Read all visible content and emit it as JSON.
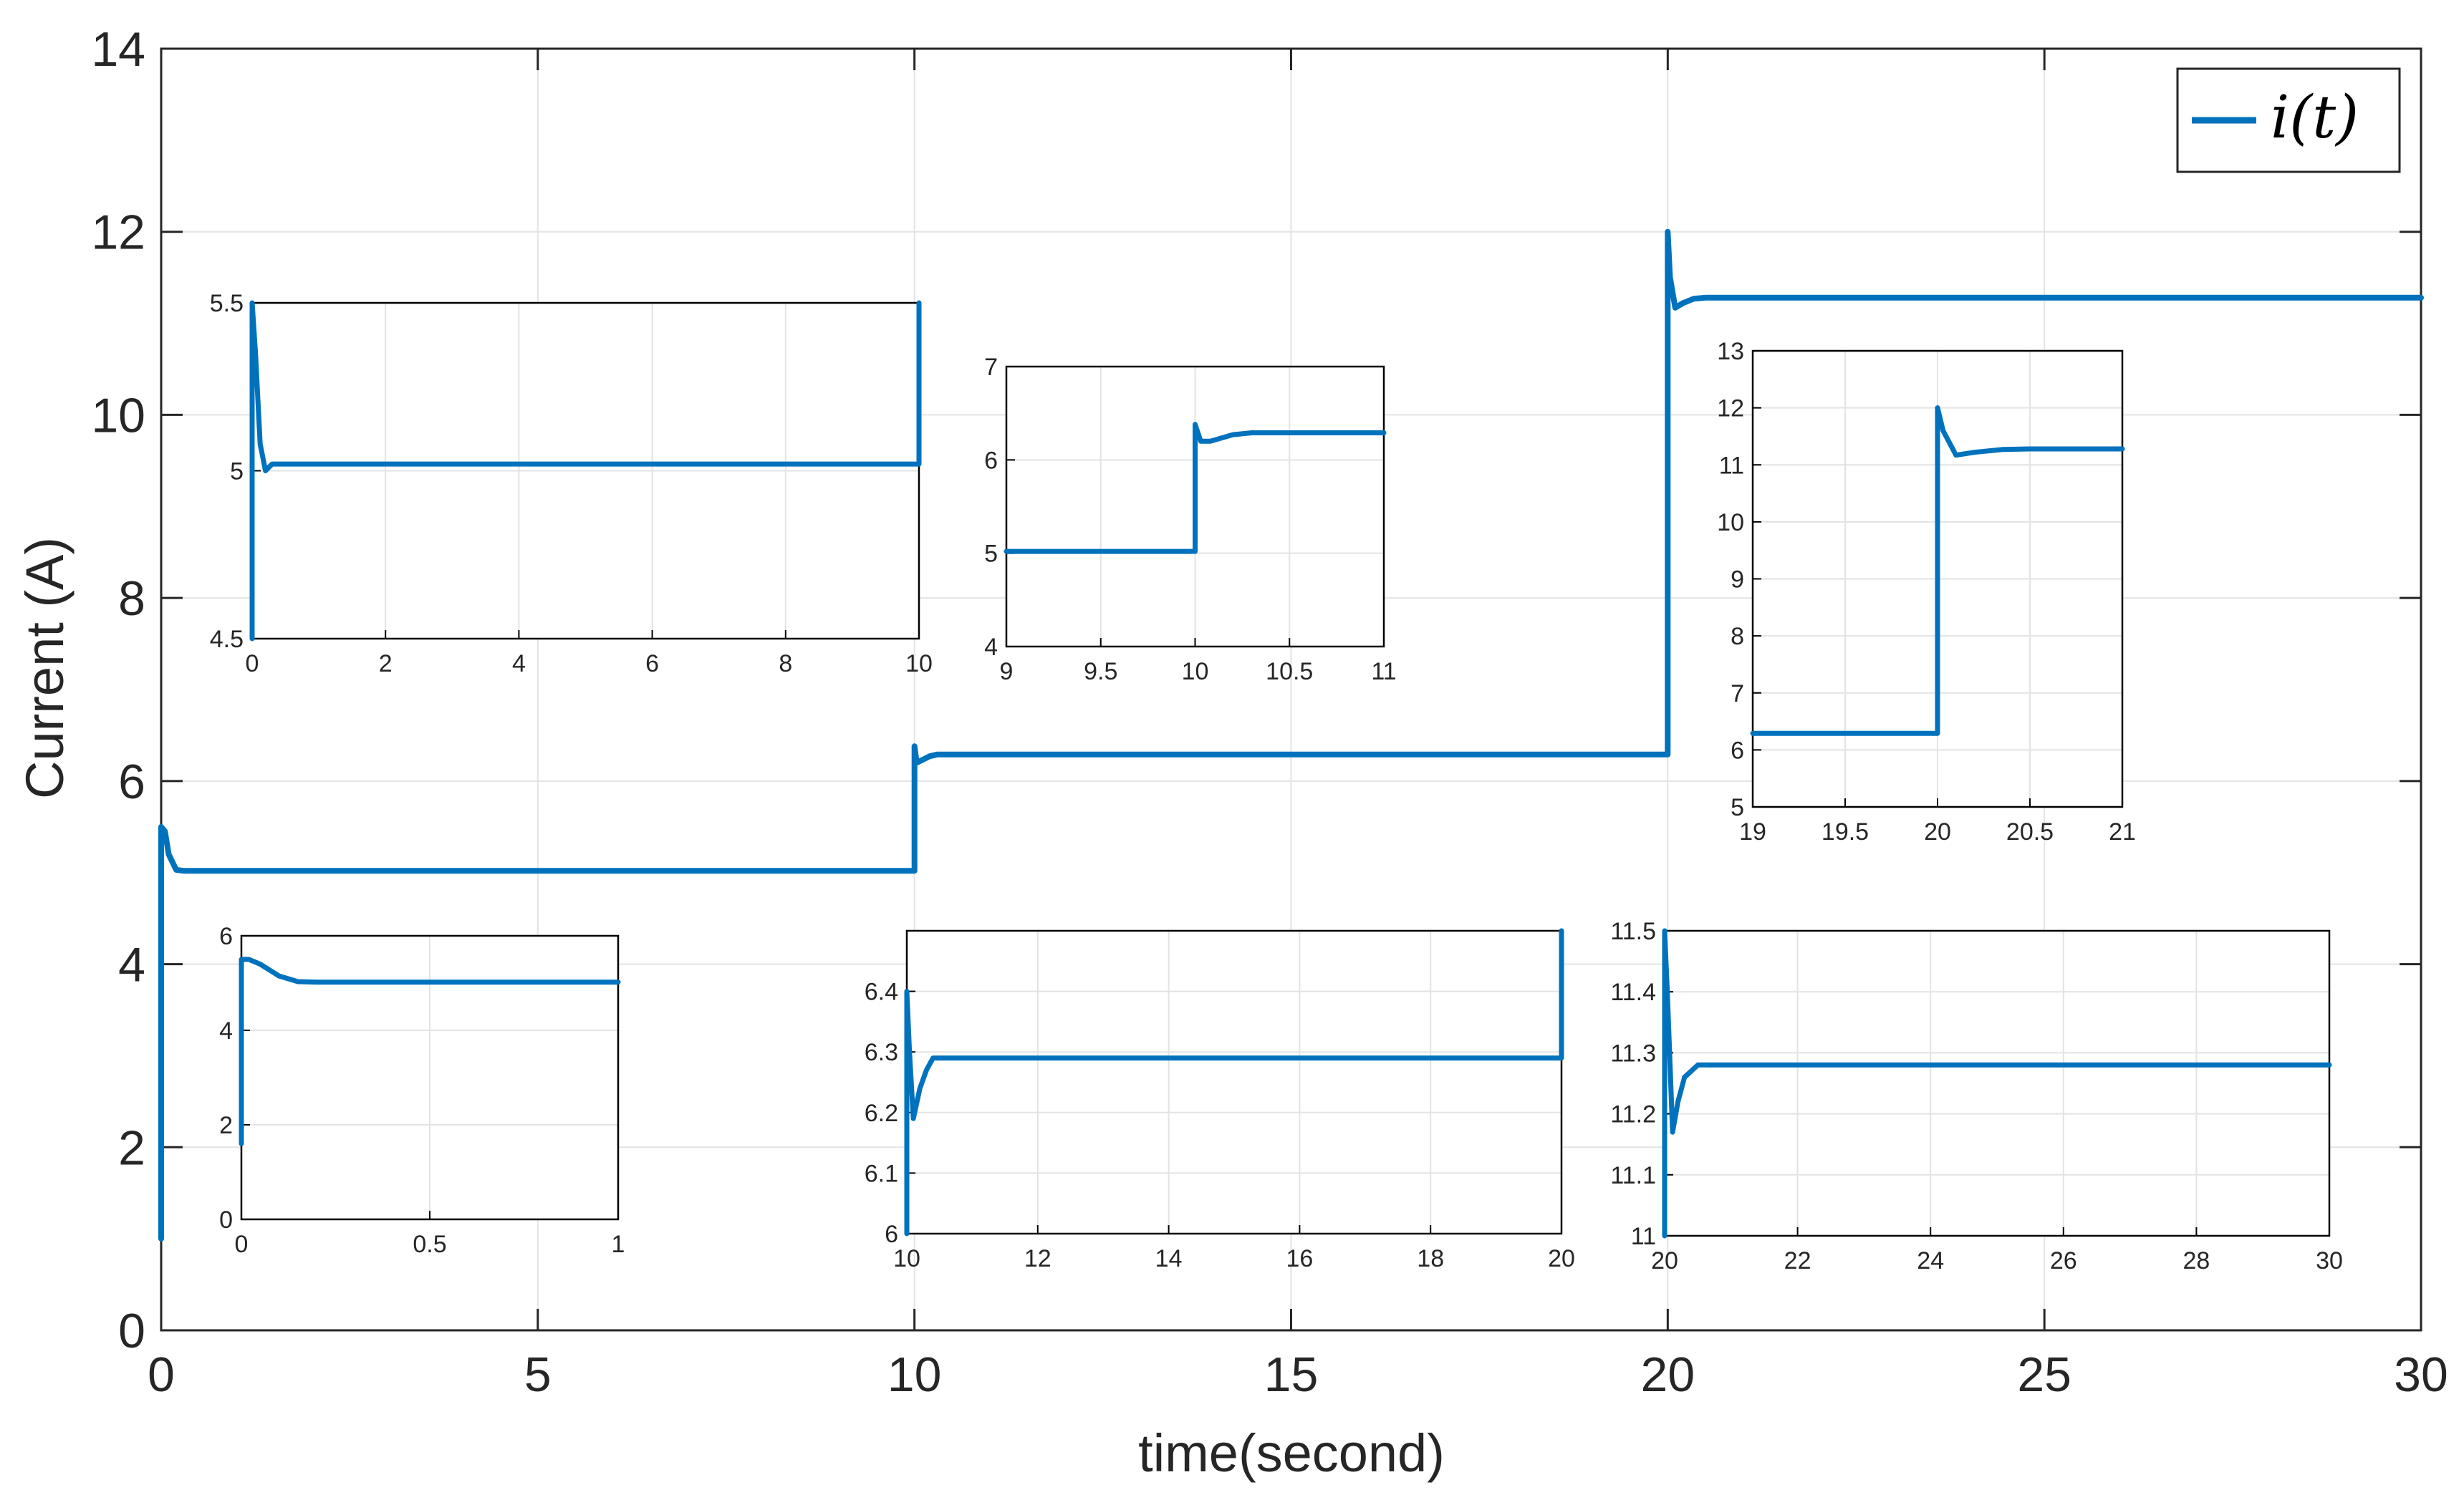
{
  "chart_data": {
    "type": "line",
    "colors": {
      "series": "#0072bd",
      "grid": "#e3e3e3",
      "axis": "#262626",
      "frame": "#000000"
    },
    "main": {
      "xlabel": "time(second)",
      "ylabel": "Current (A)",
      "xlim": [
        0,
        30
      ],
      "ylim": [
        0,
        14
      ],
      "xticks": [
        0,
        5,
        10,
        15,
        20,
        25,
        30
      ],
      "yticks": [
        0,
        2,
        4,
        6,
        8,
        10,
        12,
        14
      ],
      "grid": true,
      "legend": {
        "placement": "top-right",
        "label": "i(t)"
      },
      "series": [
        {
          "name": "i(t)",
          "x": [
            0,
            0,
            0.05,
            0.1,
            0.2,
            0.3,
            10,
            10,
            10.03,
            10.08,
            10.2,
            10.3,
            10.45,
            20,
            20,
            20.03,
            20.1,
            20.2,
            20.35,
            20.5,
            30
          ],
          "y": [
            1.0,
            5.5,
            5.45,
            5.2,
            5.03,
            5.02,
            5.02,
            6.38,
            6.2,
            6.22,
            6.27,
            6.29,
            6.29,
            6.29,
            12.0,
            11.5,
            11.17,
            11.22,
            11.27,
            11.28,
            11.28
          ]
        }
      ]
    },
    "insets": [
      {
        "id": "inset-a",
        "xlim": [
          0,
          10
        ],
        "ylim": [
          4.5,
          5.5
        ],
        "xticks": [
          "0",
          "2",
          "4",
          "6",
          "8",
          "10"
        ],
        "yticks": [
          "4.5",
          "5",
          "5.5"
        ],
        "x": [
          0,
          0,
          0.05,
          0.12,
          0.2,
          0.3,
          9.98,
          10,
          10
        ],
        "y": [
          4.5,
          5.5,
          5.35,
          5.08,
          5.0,
          5.02,
          5.02,
          5.02,
          5.5
        ]
      },
      {
        "id": "inset-b",
        "xlim": [
          9,
          11
        ],
        "ylim": [
          4,
          7
        ],
        "xticks": [
          "9",
          "9.5",
          "10",
          "10.5",
          "11"
        ],
        "yticks": [
          "4",
          "5",
          "6",
          "7"
        ],
        "x": [
          9,
          10,
          10,
          10.03,
          10.08,
          10.2,
          10.3,
          10.45,
          11
        ],
        "y": [
          5.02,
          5.02,
          6.38,
          6.2,
          6.2,
          6.27,
          6.29,
          6.29,
          6.29
        ]
      },
      {
        "id": "inset-c",
        "xlim": [
          19,
          21
        ],
        "ylim": [
          5,
          13
        ],
        "xticks": [
          "19",
          "19.5",
          "20",
          "20.5",
          "21"
        ],
        "yticks": [
          "5",
          "6",
          "7",
          "8",
          "9",
          "10",
          "11",
          "12",
          "13"
        ],
        "x": [
          19,
          20,
          20,
          20.03,
          20.1,
          20.2,
          20.35,
          20.5,
          21
        ],
        "y": [
          6.29,
          6.29,
          12.0,
          11.6,
          11.17,
          11.22,
          11.27,
          11.28,
          11.28
        ]
      },
      {
        "id": "inset-d",
        "xlim": [
          0,
          1
        ],
        "ylim": [
          0,
          6
        ],
        "xticks": [
          "0",
          "0.5",
          "1"
        ],
        "yticks": [
          "0",
          "2",
          "4",
          "6"
        ],
        "x": [
          0,
          0,
          0.02,
          0.05,
          0.1,
          0.15,
          0.2,
          1
        ],
        "y": [
          1.6,
          5.5,
          5.5,
          5.4,
          5.15,
          5.03,
          5.02,
          5.02
        ]
      },
      {
        "id": "inset-e",
        "xlim": [
          10,
          20
        ],
        "ylim": [
          6,
          6.5
        ],
        "xticks": [
          "10",
          "12",
          "14",
          "16",
          "18",
          "20"
        ],
        "yticks": [
          "6",
          "6.1",
          "6.2",
          "6.3",
          "6.4"
        ],
        "x": [
          10,
          10,
          10.04,
          10.1,
          10.2,
          10.3,
          10.4,
          10.5,
          19.98,
          20,
          20
        ],
        "y": [
          6.0,
          6.4,
          6.3,
          6.19,
          6.24,
          6.27,
          6.29,
          6.29,
          6.29,
          6.29,
          6.5
        ]
      },
      {
        "id": "inset-f",
        "xlim": [
          20,
          30
        ],
        "ylim": [
          11,
          11.5
        ],
        "xticks": [
          "20",
          "22",
          "24",
          "26",
          "28",
          "30"
        ],
        "yticks": [
          "11",
          "11.1",
          "11.2",
          "11.3",
          "11.4",
          "11.5"
        ],
        "x": [
          20,
          20,
          20.04,
          20.12,
          20.2,
          20.3,
          20.5,
          30
        ],
        "y": [
          11.0,
          11.5,
          11.4,
          11.17,
          11.22,
          11.26,
          11.28,
          11.28
        ]
      }
    ]
  }
}
